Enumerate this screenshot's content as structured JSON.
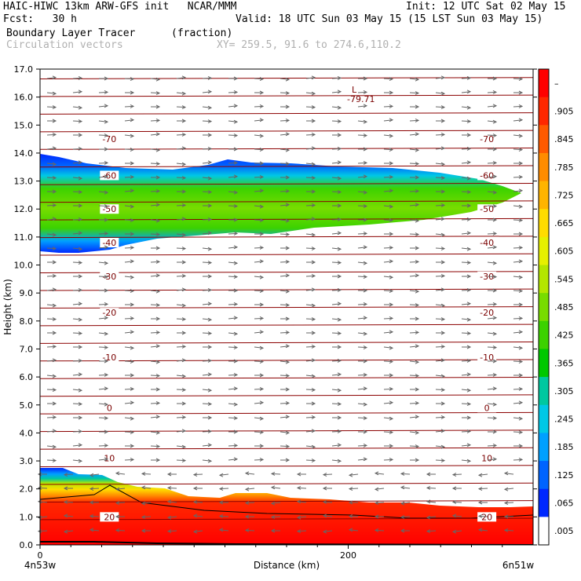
{
  "header": {
    "title_left": "HAIC-HIWC 13km ARW-GFS init   NCAR/MMM",
    "init": "Init: 12 UTC Sat 02 May 15",
    "fcst": "Fcst:   30 h",
    "valid": "Valid: 18 UTC Sun 03 May 15 (15 LST Sun 03 May 15)",
    "field1": "Boundary Layer Tracer",
    "field1_units": "(fraction)",
    "field2": "Circulation vectors",
    "xy": "XY= 259.5, 91.6 to 274.6,110.2"
  },
  "chart_data": {
    "type": "heatmap",
    "xlabel": "Distance (km)",
    "ylabel": "Height (km)",
    "xlim": [
      0,
      320
    ],
    "ylim": [
      0,
      17
    ],
    "x_ticks": [
      "0",
      "200"
    ],
    "y_ticks": [
      "0.0",
      "1.0",
      "2.0",
      "3.0",
      "4.0",
      "5.0",
      "6.0",
      "7.0",
      "8.0",
      "9.0",
      "10.0",
      "11.0",
      "12.0",
      "13.0",
      "14.0",
      "15.0",
      "16.0",
      "17.0"
    ],
    "left_endpoint": "4n53w",
    "right_endpoint": "6n51w",
    "colorbar_labels": [
      "–",
      ".905",
      ".845",
      ".785",
      ".725",
      ".665",
      ".605",
      ".545",
      ".485",
      ".425",
      ".365",
      ".305",
      ".245",
      ".185",
      ".125",
      ".065",
      ".005"
    ],
    "colorbar_colors": [
      "#ff0000",
      "#ff2800",
      "#ff5a00",
      "#ff8c00",
      "#ffb400",
      "#ffdc00",
      "#e6f000",
      "#b4e600",
      "#78dc00",
      "#3cd200",
      "#00c800",
      "#00c8a0",
      "#00c8e6",
      "#00a0ff",
      "#0064ff",
      "#0028ff",
      "#ffffff"
    ],
    "contours": [
      {
        "label": "-70",
        "y": 14.5
      },
      {
        "label": "-60",
        "y": 13.2
      },
      {
        "label": "-50",
        "y": 12.0
      },
      {
        "label": "-40",
        "y": 10.8
      },
      {
        "label": "-30",
        "y": 9.6
      },
      {
        "label": "-20",
        "y": 8.3
      },
      {
        "label": "-10",
        "y": 6.7
      },
      {
        "label": "0",
        "y": 4.9
      },
      {
        "label": "10",
        "y": 3.1
      },
      {
        "label": "20",
        "y": 1.0
      }
    ],
    "low_marker": {
      "symbol": "L",
      "value": "-79.71"
    }
  }
}
